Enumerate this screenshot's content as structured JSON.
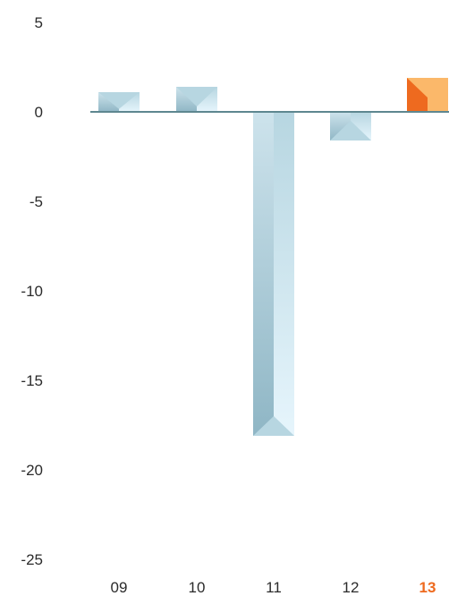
{
  "chart_data": {
    "type": "bar",
    "categories": [
      "09",
      "10",
      "11",
      "12",
      "13"
    ],
    "values": [
      1.1,
      1.4,
      -18.1,
      -1.6,
      1.9
    ],
    "highlight_category": "13",
    "ylim": [
      -25,
      5
    ],
    "yticks": [
      "5",
      "0",
      "-5",
      "-10",
      "-15",
      "-20",
      "-25"
    ],
    "grid": false,
    "colors": {
      "bar_light": "#e3f3fb",
      "bar_mid": "#b7d6e1",
      "bar_dark": "#8fb6c5",
      "highlight_dark": "#ee6a1f",
      "highlight_light": "#fbb86a",
      "baseline": "#5e8790",
      "text": "#2b2b2b",
      "highlight_text": "#ee6a1f"
    }
  }
}
